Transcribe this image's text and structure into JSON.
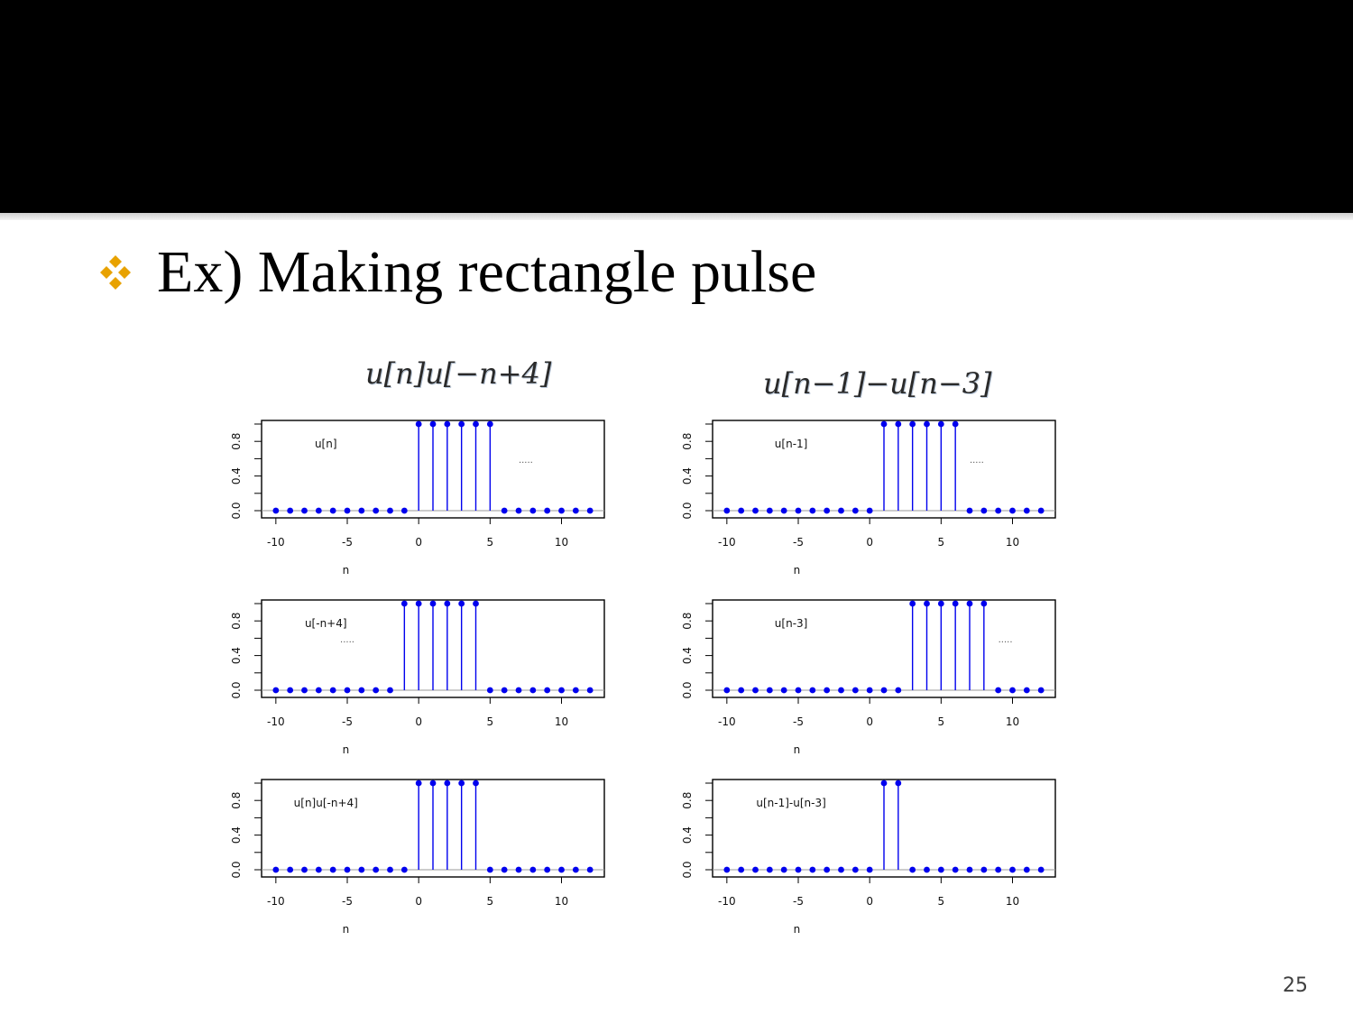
{
  "slide": {
    "bullet_text": "Ex) Making rectangle pulse",
    "bullet_icon": "four-diamond-bullet-icon",
    "bullet_color": "#e8a200",
    "page_number": "25"
  },
  "formulas": {
    "left": "u[n]u[−n+4]",
    "right": "u[n−1]−u[n−3]"
  },
  "chart_data": [
    {
      "type": "scatter",
      "label": "u[n]",
      "dots_label": ".....",
      "x": [
        -10,
        -9,
        -8,
        -7,
        -6,
        -5,
        -4,
        -3,
        -2,
        -1,
        0,
        1,
        2,
        3,
        4,
        5,
        6,
        7,
        8,
        9,
        10,
        11,
        12
      ],
      "y": [
        0,
        0,
        0,
        0,
        0,
        0,
        0,
        0,
        0,
        0,
        1,
        1,
        1,
        1,
        1,
        1,
        0,
        0,
        0,
        0,
        0,
        0,
        0
      ],
      "xlabel": "n",
      "xticks": [
        "-10",
        "-5",
        "0",
        "5",
        "10"
      ],
      "yticks": [
        "0.0",
        "0.4",
        "0.8"
      ],
      "xlim": [
        -11,
        13
      ],
      "ylim": [
        0,
        1
      ],
      "color": "#0000ee"
    },
    {
      "type": "scatter",
      "label": "u[n-1]",
      "dots_label": ".....",
      "x": [
        -10,
        -9,
        -8,
        -7,
        -6,
        -5,
        -4,
        -3,
        -2,
        -1,
        0,
        1,
        2,
        3,
        4,
        5,
        6,
        7,
        8,
        9,
        10,
        11,
        12
      ],
      "y": [
        0,
        0,
        0,
        0,
        0,
        0,
        0,
        0,
        0,
        0,
        0,
        1,
        1,
        1,
        1,
        1,
        1,
        0,
        0,
        0,
        0,
        0,
        0
      ],
      "xlabel": "n",
      "xticks": [
        "-10",
        "-5",
        "0",
        "5",
        "10"
      ],
      "yticks": [
        "0.0",
        "0.4",
        "0.8"
      ],
      "xlim": [
        -11,
        13
      ],
      "ylim": [
        0,
        1
      ],
      "color": "#0000ee"
    },
    {
      "type": "scatter",
      "label": "u[-n+4]",
      "dots_label": ".....",
      "x": [
        -10,
        -9,
        -8,
        -7,
        -6,
        -5,
        -4,
        -3,
        -2,
        -1,
        0,
        1,
        2,
        3,
        4,
        5,
        6,
        7,
        8,
        9,
        10,
        11,
        12
      ],
      "y": [
        0,
        0,
        0,
        0,
        0,
        0,
        0,
        0,
        0,
        1,
        1,
        1,
        1,
        1,
        1,
        0,
        0,
        0,
        0,
        0,
        0,
        0,
        0
      ],
      "xlabel": "n",
      "xticks": [
        "-10",
        "-5",
        "0",
        "5",
        "10"
      ],
      "yticks": [
        "0.0",
        "0.4",
        "0.8"
      ],
      "xlim": [
        -11,
        13
      ],
      "ylim": [
        0,
        1
      ],
      "color": "#0000ee"
    },
    {
      "type": "scatter",
      "label": "u[n-3]",
      "dots_label": ".....",
      "x": [
        -10,
        -9,
        -8,
        -7,
        -6,
        -5,
        -4,
        -3,
        -2,
        -1,
        0,
        1,
        2,
        3,
        4,
        5,
        6,
        7,
        8,
        9,
        10,
        11,
        12
      ],
      "y": [
        0,
        0,
        0,
        0,
        0,
        0,
        0,
        0,
        0,
        0,
        0,
        0,
        0,
        1,
        1,
        1,
        1,
        1,
        1,
        0,
        0,
        0,
        0
      ],
      "xlabel": "n",
      "xticks": [
        "-10",
        "-5",
        "0",
        "5",
        "10"
      ],
      "yticks": [
        "0.0",
        "0.4",
        "0.8"
      ],
      "xlim": [
        -11,
        13
      ],
      "ylim": [
        0,
        1
      ],
      "color": "#0000ee"
    },
    {
      "type": "scatter",
      "label": "u[n]u[-n+4]",
      "dots_label": "",
      "x": [
        -10,
        -9,
        -8,
        -7,
        -6,
        -5,
        -4,
        -3,
        -2,
        -1,
        0,
        1,
        2,
        3,
        4,
        5,
        6,
        7,
        8,
        9,
        10,
        11,
        12
      ],
      "y": [
        0,
        0,
        0,
        0,
        0,
        0,
        0,
        0,
        0,
        0,
        1,
        1,
        1,
        1,
        1,
        0,
        0,
        0,
        0,
        0,
        0,
        0,
        0
      ],
      "xlabel": "n",
      "xticks": [
        "-10",
        "-5",
        "0",
        "5",
        "10"
      ],
      "yticks": [
        "0.0",
        "0.4",
        "0.8"
      ],
      "xlim": [
        -11,
        13
      ],
      "ylim": [
        0,
        1
      ],
      "color": "#0000ee"
    },
    {
      "type": "scatter",
      "label": "u[n-1]-u[n-3]",
      "dots_label": "",
      "x": [
        -10,
        -9,
        -8,
        -7,
        -6,
        -5,
        -4,
        -3,
        -2,
        -1,
        0,
        1,
        2,
        3,
        4,
        5,
        6,
        7,
        8,
        9,
        10,
        11,
        12
      ],
      "y": [
        0,
        0,
        0,
        0,
        0,
        0,
        0,
        0,
        0,
        0,
        0,
        1,
        1,
        0,
        0,
        0,
        0,
        0,
        0,
        0,
        0,
        0,
        0
      ],
      "xlabel": "n",
      "xticks": [
        "-10",
        "-5",
        "0",
        "5",
        "10"
      ],
      "yticks": [
        "0.0",
        "0.4",
        "0.8"
      ],
      "xlim": [
        -11,
        13
      ],
      "ylim": [
        0,
        1
      ],
      "color": "#0000ee"
    }
  ]
}
